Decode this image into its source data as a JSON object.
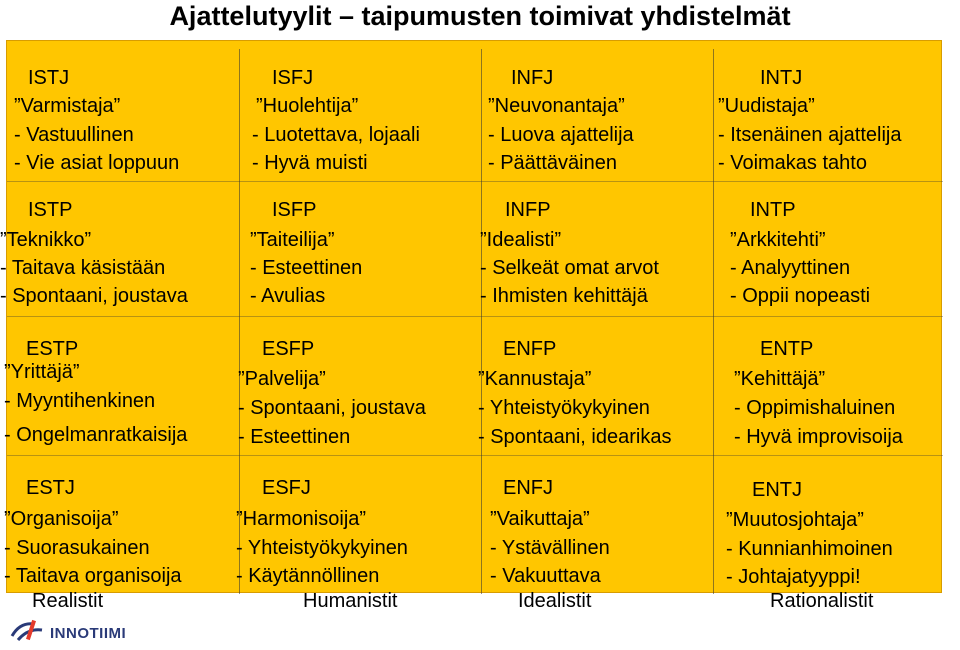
{
  "title": "Ajattelutyylit – taipumusten toimivat yhdistelmät",
  "rows": [
    [
      {
        "code": "ISTJ",
        "role": "Varmistaja",
        "traits": [
          "- Vastuullinen",
          "- Vie asiat loppuun"
        ]
      },
      {
        "code": "ISFJ",
        "role": "Huolehtija",
        "traits": [
          "- Luotettava,  lojaali",
          "- Hyvä muisti"
        ]
      },
      {
        "code": "INFJ",
        "role": "Neuvonantaja",
        "traits": [
          "- Luova ajattelija",
          "- Päättäväinen"
        ]
      },
      {
        "code": "INTJ",
        "role": "Uudistaja",
        "traits": [
          "- Itsenäinen ajattelija",
          "- Voimakas tahto"
        ]
      }
    ],
    [
      {
        "code": "ISTP",
        "role": "Teknikko",
        "traits": [
          "- Taitava käsistään",
          "- Spontaani, joustava"
        ]
      },
      {
        "code": "ISFP",
        "role": "Taiteilija",
        "traits": [
          "- Esteettinen",
          "- Avulias"
        ]
      },
      {
        "code": "INFP",
        "role": "Idealisti",
        "traits": [
          "- Selkeät omat arvot",
          "- Ihmisten kehittäjä"
        ]
      },
      {
        "code": "INTP",
        "role": "Arkkitehti",
        "traits": [
          "- Analyyttinen",
          "- Oppii nopeasti"
        ]
      }
    ],
    [
      {
        "code": "ESTP",
        "role": "Yrittäjä",
        "traits": [
          "- Myyntihenkinen",
          "- Ongelmanratkaisija"
        ]
      },
      {
        "code": "ESFP",
        "role": "Palvelija",
        "traits": [
          "- Spontaani, joustava",
          "- Esteettinen"
        ]
      },
      {
        "code": "ENFP",
        "role": "Kannustaja",
        "traits": [
          "- Yhteistyökykyinen",
          "- Spontaani, idearikas"
        ]
      },
      {
        "code": "ENTP",
        "role": "Kehittäjä",
        "traits": [
          "- Oppimishaluinen",
          "- Hyvä improvisoija"
        ]
      }
    ],
    [
      {
        "code": "ESTJ",
        "role": "Organisoija",
        "traits": [
          "- Suorasukainen",
          "- Taitava organisoija"
        ]
      },
      {
        "code": "ESFJ",
        "role": "Harmonisoija",
        "traits": [
          "- Yhteistyökykyinen",
          "- Käytännöllinen"
        ]
      },
      {
        "code": "ENFJ",
        "role": "Vaikuttaja",
        "traits": [
          "- Ystävällinen",
          "- Vakuuttava"
        ]
      },
      {
        "code": "ENTJ",
        "role": "Muutosjohtaja",
        "traits": [
          "- Kunnianhimoinen",
          "- Johtajatyyppi!"
        ]
      }
    ]
  ],
  "columns": [
    "Realistit",
    "Humanistit",
    "Idealistit",
    "Rationalistit"
  ],
  "logo": {
    "text": "INNOTIIMI",
    "icon": "innotiimi-logo-icon",
    "color": "#2a3a78",
    "accent": "#e53a2b"
  }
}
